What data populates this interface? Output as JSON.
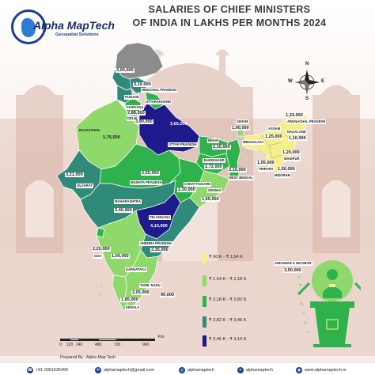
{
  "title": {
    "line1": "SALARIES OF CHIEF MINISTERS",
    "line2": "OF INDIA IN LAKHS PER MONTHS 2024"
  },
  "logo": {
    "brand": "Alpha MapTech",
    "tagline": "Geospatial Solutions"
  },
  "compass": {
    "n": "N",
    "s": "S",
    "e": "E",
    "w": "W"
  },
  "colors": {
    "class1": "#f5ee8a",
    "class2": "#8fd86b",
    "class3": "#2fb24c",
    "class4": "#2f8a7a",
    "class5": "#1e1a8c",
    "gray": "#8c8c8c"
  },
  "states": [
    {
      "name": "",
      "value": "3,00,000"
    },
    {
      "name": "HIMACHAL PRADESH",
      "value": "3,10,000"
    },
    {
      "name": "PUNJAB",
      "value": ""
    },
    {
      "name": "UTTARAKHAND",
      "value": ""
    },
    {
      "name": "HARYANA",
      "value": "2,88,000"
    },
    {
      "name": "DELHI",
      "value": "3,90,000"
    },
    {
      "name": "RAJASTHAN",
      "value": "1,75,000"
    },
    {
      "name": "UTTAR PRADESH",
      "value": "3,65,000"
    },
    {
      "name": "BIHAR",
      "value": "2,15,000"
    },
    {
      "name": "SIKKIM",
      "value": "1,90,000"
    },
    {
      "name": "ARUNACHAL PRADESH",
      "value": "1,33,000"
    },
    {
      "name": "ASSAM",
      "value": ""
    },
    {
      "name": "NAGALAND",
      "value": "1,10,000"
    },
    {
      "name": "MEGHALAYA",
      "value": "1,25,000"
    },
    {
      "name": "MANIPUR",
      "value": "1,20,000"
    },
    {
      "name": "TRIPURA",
      "value": "1,05,500"
    },
    {
      "name": "MIZORAM",
      "value": ""
    },
    {
      "name": "",
      "value": "1,50,000"
    },
    {
      "name": "GUJARAT",
      "value": "3,21,000"
    },
    {
      "name": "MADHYA PRADESH",
      "value": "2,55,000"
    },
    {
      "name": "JHARKHAND",
      "value": "2,72,000"
    },
    {
      "name": "WEST BENGAL",
      "value": "2,10,000"
    },
    {
      "name": "CHHATTISGARH",
      "value": "2,30,000"
    },
    {
      "name": "ODISHA",
      "value": "1,60,000"
    },
    {
      "name": "MAHARASHTRA",
      "value": "3,40,000"
    },
    {
      "name": "TELANGANA",
      "value": "4,10,000"
    },
    {
      "name": "ANDHRA PRADESH",
      "value": "3,35,000"
    },
    {
      "name": "GOA",
      "value": "2,20,000"
    },
    {
      "name": "",
      "value": "1,00,000"
    },
    {
      "name": "KARNATAKA",
      "value": ""
    },
    {
      "name": "TAMIL NADU",
      "value": "2,05,000"
    },
    {
      "name": "",
      "value": "90,000"
    },
    {
      "name": "KERALA",
      "value": "1,85,000"
    },
    {
      "name": "ANDAMAN & NICOBAR",
      "value": "3,50,000"
    }
  ],
  "legend": [
    {
      "label": "₹ 90 K - ₹ 1,54 K",
      "color": "#f5ee8a"
    },
    {
      "label": "₹ 1,54 K - ₹ 2,18 K",
      "color": "#8fd86b"
    },
    {
      "label": "₹ 2,18 K - ₹ 2,82 K",
      "color": "#2fb24c"
    },
    {
      "label": "₹ 2,82 K - ₹ 3,46 K",
      "color": "#2f8a7a"
    },
    {
      "label": "₹ 3,46 K - ₹ 4,10 K",
      "color": "#1e1a8c"
    }
  ],
  "scale": {
    "ticks": [
      "0",
      "120",
      "240",
      "480",
      "720",
      "960"
    ],
    "unit": "Km"
  },
  "prepared_by": "Prepared By : Alpha Map Tech",
  "contacts": [
    {
      "icon": "phone-icon",
      "text": "+91-9361635499"
    },
    {
      "icon": "mail-icon",
      "text": "alphamaptech@gmail.com"
    },
    {
      "icon": "instagram-icon",
      "text": "alphamaptech"
    },
    {
      "icon": "twitter-icon",
      "text": "alphamaptech"
    },
    {
      "icon": "web-icon",
      "text": "www.alphamaptech.in"
    }
  ]
}
